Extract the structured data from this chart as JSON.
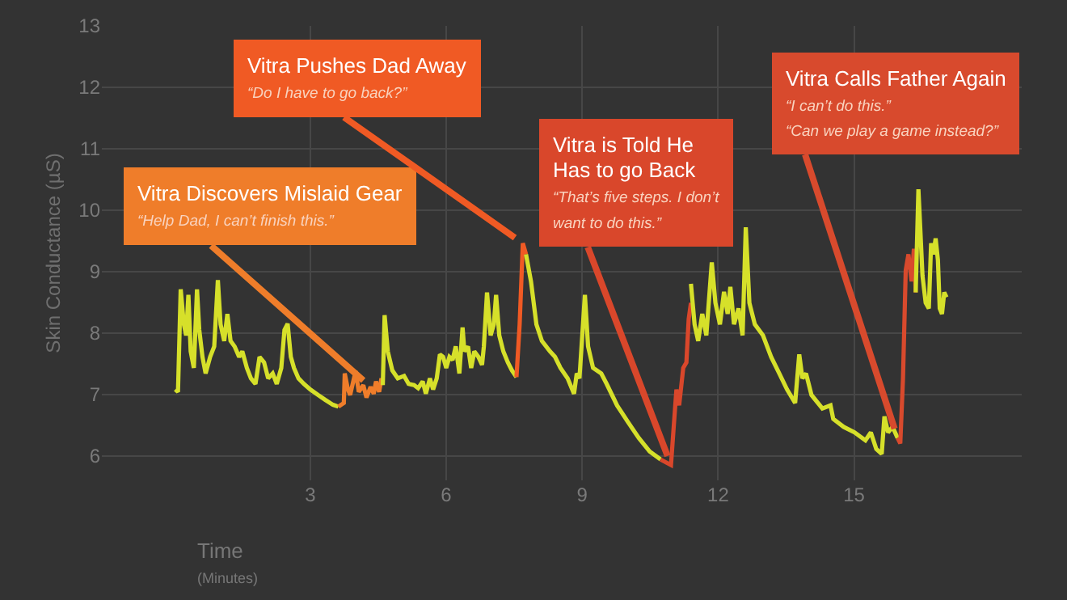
{
  "chart_data": {
    "type": "line",
    "ylabel": "Skin Conductance (µS)",
    "xlabel": "Time\n(Minutes)",
    "xlim": [
      -1.6,
      18.7
    ],
    "xticks": [
      3,
      6,
      9,
      12,
      15
    ],
    "ylim": [
      5.6,
      13
    ],
    "yticks": [
      6,
      7,
      8,
      9,
      10,
      11,
      12,
      13
    ],
    "grid": true,
    "marker": "none",
    "line_style": "solid",
    "series": [
      {
        "color": "#d6e02a",
        "x": [
          0.02,
          0.08,
          0.14,
          0.21,
          0.26,
          0.31,
          0.36,
          0.43,
          0.5,
          0.55,
          0.62,
          0.69,
          0.79,
          0.88,
          0.96,
          1.02,
          1.1,
          1.17,
          1.24,
          1.33,
          1.43,
          1.5,
          1.6,
          1.69,
          1.79,
          1.88,
          1.98,
          2.07,
          2.17,
          2.26,
          2.36,
          2.43,
          2.5,
          2.57,
          2.64,
          2.74,
          2.86,
          3.0,
          3.17,
          3.33,
          3.5,
          3.62
        ],
        "values": [
          7.08,
          7.04,
          8.71,
          8.14,
          7.96,
          8.62,
          7.7,
          7.43,
          8.71,
          8.05,
          7.61,
          7.34,
          7.61,
          7.78,
          8.86,
          8.14,
          7.87,
          8.31,
          7.87,
          7.78,
          7.61,
          7.7,
          7.43,
          7.26,
          7.17,
          7.61,
          7.52,
          7.26,
          7.34,
          7.17,
          7.43,
          8.05,
          8.15,
          7.61,
          7.43,
          7.26,
          7.17,
          7.08,
          6.99,
          6.91,
          6.83,
          6.8
        ]
      },
      {
        "color": "#ef7d2a",
        "x": [
          3.62,
          3.74,
          3.76,
          3.83,
          3.88,
          4.0,
          4.07,
          4.17,
          4.24,
          4.33,
          4.4,
          4.45,
          4.52,
          4.57,
          4.6
        ],
        "values": [
          6.8,
          6.86,
          7.34,
          7.08,
          6.99,
          7.38,
          7.04,
          7.15,
          6.95,
          7.12,
          7.01,
          7.21,
          7.04,
          7.26,
          7.15
        ]
      },
      {
        "color": "#d6e02a",
        "x": [
          4.6,
          4.64,
          4.71,
          4.81,
          4.93,
          5.07,
          5.17,
          5.29,
          5.38,
          5.48,
          5.55,
          5.64,
          5.71,
          5.79,
          5.86,
          5.93,
          6.0,
          6.07,
          6.14,
          6.21,
          6.29,
          6.36,
          6.4,
          6.48,
          6.55,
          6.62,
          6.71,
          6.79,
          6.83,
          6.9,
          6.98,
          7.05,
          7.1,
          7.17,
          7.26,
          7.36,
          7.45,
          7.55
        ],
        "values": [
          7.15,
          8.29,
          7.7,
          7.39,
          7.26,
          7.3,
          7.17,
          7.15,
          7.1,
          7.21,
          7.01,
          7.26,
          7.08,
          7.26,
          7.65,
          7.61,
          7.43,
          7.61,
          7.56,
          7.78,
          7.34,
          8.09,
          7.7,
          7.78,
          7.43,
          7.7,
          7.61,
          7.48,
          7.78,
          8.66,
          7.96,
          8.14,
          8.62,
          7.96,
          7.7,
          7.52,
          7.39,
          7.28
        ]
      },
      {
        "color": "#f05a24",
        "x": [
          7.55,
          7.62,
          7.69,
          7.76
        ],
        "values": [
          7.28,
          8.14,
          9.46,
          9.28
        ]
      },
      {
        "color": "#d6e02a",
        "x": [
          7.76,
          7.87,
          7.99,
          8.11,
          8.29,
          8.4,
          8.52,
          8.68,
          8.82,
          8.88,
          8.94,
          9.06,
          9.13,
          9.24,
          9.42,
          9.54,
          9.77,
          10.01,
          10.25,
          10.49,
          10.73
        ],
        "values": [
          9.28,
          8.84,
          8.14,
          7.87,
          7.7,
          7.61,
          7.43,
          7.26,
          7.01,
          7.34,
          7.26,
          8.62,
          7.78,
          7.43,
          7.34,
          7.17,
          6.82,
          6.55,
          6.29,
          6.07,
          5.94
        ]
      },
      {
        "color": "#d9472b",
        "x": [
          10.73,
          10.96,
          11.02,
          11.08,
          11.14,
          11.23,
          11.3,
          11.35,
          11.4
        ],
        "values": [
          5.94,
          5.85,
          6.47,
          7.08,
          6.82,
          7.43,
          7.52,
          8.22,
          8.49
        ]
      },
      {
        "color": "#d6e02a",
        "x": [
          11.4,
          11.48,
          11.56,
          11.65,
          11.74,
          11.86,
          11.94,
          12.04,
          12.13,
          12.21,
          12.27,
          12.35,
          12.45,
          12.54,
          12.61,
          12.69,
          12.81,
          12.99,
          13.17,
          13.35,
          13.52,
          13.7,
          13.79,
          13.86,
          13.94,
          14.06,
          14.3,
          14.48,
          14.54,
          14.77,
          15.01,
          15.25,
          15.37,
          15.49,
          15.61,
          15.67,
          15.75,
          15.85,
          15.96
        ],
        "values": [
          8.8,
          8.14,
          7.87,
          8.31,
          7.96,
          9.15,
          8.49,
          8.14,
          8.67,
          8.31,
          8.75,
          8.14,
          8.4,
          7.96,
          9.72,
          8.49,
          8.14,
          7.96,
          7.61,
          7.34,
          7.08,
          6.86,
          7.65,
          7.26,
          7.34,
          6.99,
          6.77,
          6.82,
          6.6,
          6.47,
          6.38,
          6.25,
          6.38,
          6.11,
          6.03,
          6.64,
          6.38,
          6.47,
          6.29
        ]
      },
      {
        "color": "#d84a2d",
        "x": [
          15.96,
          16.02,
          16.08,
          16.14,
          16.2,
          16.27,
          16.32,
          16.36
        ],
        "values": [
          6.29,
          6.2,
          7.26,
          9.02,
          9.28,
          8.84,
          9.37,
          8.66
        ]
      },
      {
        "color": "#d6e02a",
        "x": [
          16.36,
          16.42,
          16.46,
          16.51,
          16.58,
          16.65,
          16.7,
          16.75,
          16.8,
          16.85,
          16.89,
          16.94,
          16.99,
          17.04
        ],
        "values": [
          8.66,
          10.34,
          9.72,
          8.93,
          8.49,
          8.4,
          9.46,
          9.28,
          9.54,
          9.19,
          8.4,
          8.31,
          8.66,
          8.58
        ]
      }
    ],
    "annotations": [
      {
        "text": "Vitra Discovers Mislaid Gear\n“Help Dad, I can’t finish this.”",
        "x": 4.33,
        "y": 7.12
      },
      {
        "text": "Vitra Pushes Dad Away\n“Do I have to go back?”",
        "x": 7.69,
        "y": 9.46
      },
      {
        "text": "Vitra is Told He Has to go Back\n“That’s five steps. I don’t want to do this.”",
        "x": 10.96,
        "y": 5.85
      },
      {
        "text": "Vitra Calls Father Again\n“I can’t do this.”\n“Can we play a game instead?”",
        "x": 15.96,
        "y": 6.29
      }
    ]
  }
}
